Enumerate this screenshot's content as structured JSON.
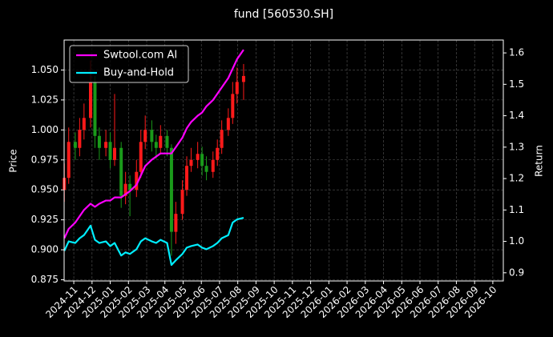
{
  "chart_data": {
    "type": "candlestick",
    "title": "fund [560530.SH]",
    "ylabel": "Price",
    "y2label": "Return",
    "x": [
      2024.79,
      2024.81,
      2024.84,
      2024.86,
      2024.88,
      2024.91,
      2024.93,
      2024.95,
      2024.98,
      2025.0,
      2025.02,
      2025.05,
      2025.07,
      2025.09,
      2025.12,
      2025.14,
      2025.16,
      2025.19,
      2025.21,
      2025.23,
      2025.26,
      2025.28,
      2025.3,
      2025.33,
      2025.35,
      2025.37,
      2025.4,
      2025.42,
      2025.44,
      2025.47,
      2025.49,
      2025.51,
      2025.54,
      2025.56,
      2025.58,
      2025.61
    ],
    "open": [
      0.95,
      0.96,
      0.99,
      0.985,
      1.0,
      1.01,
      1.04,
      0.995,
      0.985,
      0.99,
      0.975,
      0.985,
      0.945,
      0.955,
      0.95,
      0.965,
      0.99,
      1.0,
      0.99,
      0.985,
      0.995,
      0.985,
      0.915,
      0.93,
      0.95,
      0.97,
      0.975,
      0.98,
      0.97,
      0.965,
      0.975,
      0.985,
      1.0,
      1.01,
      1.03,
      1.04
    ],
    "high": [
      0.972,
      1.002,
      0.998,
      1.01,
      1.022,
      1.058,
      1.045,
      1.002,
      1.0,
      0.998,
      1.03,
      0.99,
      0.965,
      0.962,
      0.975,
      1.0,
      1.012,
      1.008,
      0.996,
      1.004,
      1.0,
      0.988,
      0.94,
      0.958,
      0.978,
      0.985,
      0.99,
      0.986,
      0.978,
      0.982,
      0.992,
      1.008,
      1.018,
      1.04,
      1.052,
      1.055
    ],
    "low": [
      0.94,
      0.955,
      0.975,
      0.978,
      0.992,
      1.002,
      0.985,
      0.975,
      0.978,
      0.968,
      0.97,
      0.935,
      0.938,
      0.928,
      0.944,
      0.96,
      0.984,
      0.982,
      0.976,
      0.98,
      0.978,
      0.895,
      0.905,
      0.925,
      0.945,
      0.965,
      0.968,
      0.962,
      0.958,
      0.96,
      0.97,
      0.98,
      0.995,
      1.005,
      1.022,
      1.025
    ],
    "close": [
      0.96,
      0.99,
      0.985,
      1.0,
      1.01,
      1.04,
      0.995,
      0.985,
      0.99,
      0.975,
      0.985,
      0.945,
      0.955,
      0.95,
      0.965,
      0.99,
      1.0,
      0.99,
      0.985,
      0.995,
      0.985,
      0.915,
      0.93,
      0.95,
      0.97,
      0.975,
      0.98,
      0.97,
      0.965,
      0.975,
      0.985,
      1.0,
      1.01,
      1.03,
      1.04,
      1.045
    ],
    "up_color": "#ff1a1a",
    "down_color": "#1a9a1a",
    "series": [
      {
        "name": "Swtool.com AI",
        "color": "#ff00ff",
        "axis": "y2",
        "values": [
          1.01,
          1.04,
          1.06,
          1.08,
          1.1,
          1.12,
          1.11,
          1.12,
          1.13,
          1.13,
          1.14,
          1.14,
          1.15,
          1.16,
          1.18,
          1.21,
          1.24,
          1.26,
          1.27,
          1.28,
          1.28,
          1.28,
          1.3,
          1.33,
          1.36,
          1.38,
          1.4,
          1.41,
          1.43,
          1.45,
          1.47,
          1.49,
          1.52,
          1.55,
          1.58,
          1.61
        ]
      },
      {
        "name": "Buy-and-Hold",
        "color": "#00eeff",
        "axis": "y2",
        "values": [
          0.97,
          1.0,
          0.995,
          1.01,
          1.02,
          1.05,
          1.005,
          0.995,
          1.0,
          0.985,
          0.995,
          0.955,
          0.965,
          0.96,
          0.975,
          1.0,
          1.01,
          1.0,
          0.995,
          1.005,
          0.995,
          0.925,
          0.94,
          0.96,
          0.98,
          0.985,
          0.99,
          0.98,
          0.975,
          0.985,
          0.995,
          1.01,
          1.02,
          1.06,
          1.07,
          1.075
        ]
      }
    ],
    "xlim": [
      2024.789,
      2026.798
    ],
    "xticks": [
      {
        "value": 2024.8333,
        "label": "2024-11"
      },
      {
        "value": 2024.9167,
        "label": "2024-12"
      },
      {
        "value": 2025.0,
        "label": "2025-01"
      },
      {
        "value": 2025.0833,
        "label": "2025-02"
      },
      {
        "value": 2025.1667,
        "label": "2025-03"
      },
      {
        "value": 2025.25,
        "label": "2025-04"
      },
      {
        "value": 2025.3333,
        "label": "2025-05"
      },
      {
        "value": 2025.4167,
        "label": "2025-06"
      },
      {
        "value": 2025.5,
        "label": "2025-07"
      },
      {
        "value": 2025.5833,
        "label": "2025-08"
      },
      {
        "value": 2025.6667,
        "label": "2025-09"
      },
      {
        "value": 2025.75,
        "label": "2025-10"
      },
      {
        "value": 2025.8333,
        "label": "2025-11"
      },
      {
        "value": 2025.9167,
        "label": "2025-12"
      },
      {
        "value": 2026.0,
        "label": "2026-01"
      },
      {
        "value": 2026.0833,
        "label": "2026-02"
      },
      {
        "value": 2026.1667,
        "label": "2026-03"
      },
      {
        "value": 2026.25,
        "label": "2026-04"
      },
      {
        "value": 2026.3333,
        "label": "2026-05"
      },
      {
        "value": 2026.4167,
        "label": "2026-06"
      },
      {
        "value": 2026.5,
        "label": "2026-07"
      },
      {
        "value": 2026.5833,
        "label": "2026-08"
      },
      {
        "value": 2026.6667,
        "label": "2026-09"
      },
      {
        "value": 2026.75,
        "label": "2026-10"
      }
    ],
    "ylim": [
      0.874,
      1.075
    ],
    "yticks": [
      0.875,
      {
        "value": 0.9,
        "label": "0.900"
      },
      0.925,
      {
        "value": 0.95,
        "label": "0.950"
      },
      0.975,
      {
        "value": 1.0,
        "label": "1.000"
      },
      1.025,
      {
        "value": 1.05,
        "label": "1.050"
      }
    ],
    "y2lim": [
      0.874,
      1.641
    ],
    "y2ticks": [
      0.9,
      {
        "value": 1.0,
        "label": "1.0"
      },
      1.1,
      1.2,
      1.3,
      1.4,
      1.5,
      1.6
    ],
    "grid": true,
    "legend": "upper left"
  }
}
